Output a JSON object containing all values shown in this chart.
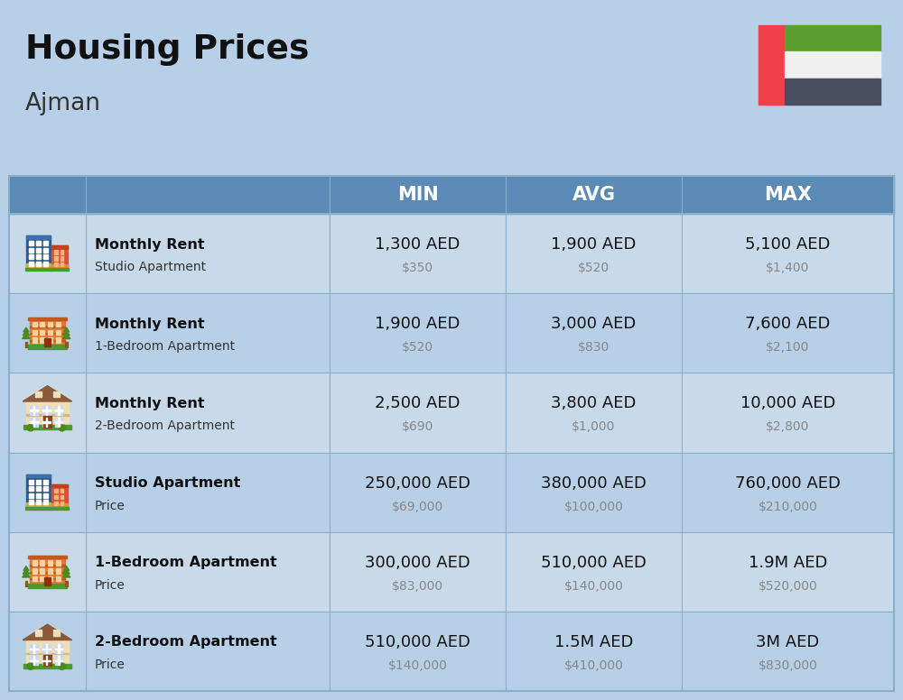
{
  "title": "Housing Prices",
  "subtitle": "Ajman",
  "bg_color": "#b8cfe8",
  "header_bg": "#5a8ab5",
  "header_text_color": "#ffffff",
  "row_bg_even": "#c8d9ea",
  "row_bg_odd": "#b8cfe8",
  "col_headers": [
    "MIN",
    "AVG",
    "MAX"
  ],
  "rows": [
    {
      "bold_label": "Monthly Rent",
      "sub_label": "Studio Apartment",
      "min_aed": "1,300 AED",
      "min_usd": "$350",
      "avg_aed": "1,900 AED",
      "avg_usd": "$520",
      "max_aed": "5,100 AED",
      "max_usd": "$1,400",
      "icon_type": "blue_red"
    },
    {
      "bold_label": "Monthly Rent",
      "sub_label": "1-Bedroom Apartment",
      "min_aed": "1,900 AED",
      "min_usd": "$520",
      "avg_aed": "3,000 AED",
      "avg_usd": "$830",
      "max_aed": "7,600 AED",
      "max_usd": "$2,100",
      "icon_type": "orange_trees"
    },
    {
      "bold_label": "Monthly Rent",
      "sub_label": "2-Bedroom Apartment",
      "min_aed": "2,500 AED",
      "min_usd": "$690",
      "avg_aed": "3,800 AED",
      "avg_usd": "$1,000",
      "max_aed": "10,000 AED",
      "max_usd": "$2,800",
      "icon_type": "beige_house"
    },
    {
      "bold_label": "Studio Apartment",
      "sub_label": "Price",
      "min_aed": "250,000 AED",
      "min_usd": "$69,000",
      "avg_aed": "380,000 AED",
      "avg_usd": "$100,000",
      "max_aed": "760,000 AED",
      "max_usd": "$210,000",
      "icon_type": "blue_red"
    },
    {
      "bold_label": "1-Bedroom Apartment",
      "sub_label": "Price",
      "min_aed": "300,000 AED",
      "min_usd": "$83,000",
      "avg_aed": "510,000 AED",
      "avg_usd": "$140,000",
      "max_aed": "1.9M AED",
      "max_usd": "$520,000",
      "icon_type": "orange_trees"
    },
    {
      "bold_label": "2-Bedroom Apartment",
      "sub_label": "Price",
      "min_aed": "510,000 AED",
      "min_usd": "$140,000",
      "avg_aed": "1.5M AED",
      "avg_usd": "$410,000",
      "max_aed": "3M AED",
      "max_usd": "$830,000",
      "icon_type": "beige_house"
    }
  ],
  "flag": {
    "red": "#f0404a",
    "green": "#5a9e2f",
    "white": "#f0f0f0",
    "dark": "#4a5060"
  }
}
